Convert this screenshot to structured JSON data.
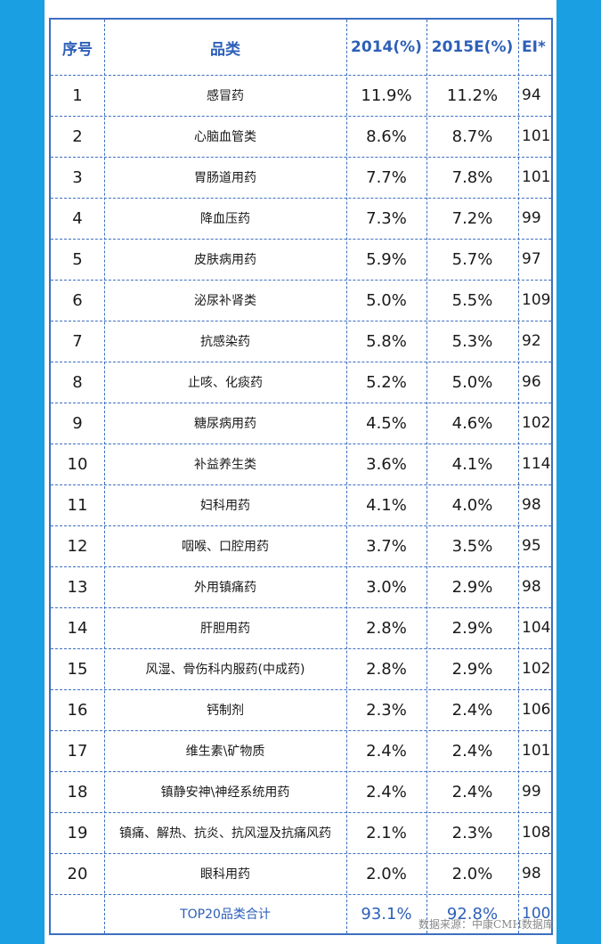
{
  "table": {
    "headers": {
      "index": "序号",
      "category": "品类",
      "y2014": "2014(%)",
      "y2015": "2015E(%)",
      "ei": "EI*"
    },
    "rows": [
      {
        "index": "1",
        "category": "感冒药",
        "y2014": "11.9%",
        "y2015": "11.2%",
        "ei": "94"
      },
      {
        "index": "2",
        "category": "心脑血管类",
        "y2014": "8.6%",
        "y2015": "8.7%",
        "ei": "101"
      },
      {
        "index": "3",
        "category": "胃肠道用药",
        "y2014": "7.7%",
        "y2015": "7.8%",
        "ei": "101"
      },
      {
        "index": "4",
        "category": "降血压药",
        "y2014": "7.3%",
        "y2015": "7.2%",
        "ei": "99"
      },
      {
        "index": "5",
        "category": "皮肤病用药",
        "y2014": "5.9%",
        "y2015": "5.7%",
        "ei": "97"
      },
      {
        "index": "6",
        "category": "泌尿补肾类",
        "y2014": "5.0%",
        "y2015": "5.5%",
        "ei": "109"
      },
      {
        "index": "7",
        "category": "抗感染药",
        "y2014": "5.8%",
        "y2015": "5.3%",
        "ei": "92"
      },
      {
        "index": "8",
        "category": "止咳、化痰药",
        "y2014": "5.2%",
        "y2015": "5.0%",
        "ei": "96"
      },
      {
        "index": "9",
        "category": "糖尿病用药",
        "y2014": "4.5%",
        "y2015": "4.6%",
        "ei": "102"
      },
      {
        "index": "10",
        "category": "补益养生类",
        "y2014": "3.6%",
        "y2015": "4.1%",
        "ei": "114"
      },
      {
        "index": "11",
        "category": "妇科用药",
        "y2014": "4.1%",
        "y2015": "4.0%",
        "ei": "98"
      },
      {
        "index": "12",
        "category": "咽喉、口腔用药",
        "y2014": "3.7%",
        "y2015": "3.5%",
        "ei": "95"
      },
      {
        "index": "13",
        "category": "外用镇痛药",
        "y2014": "3.0%",
        "y2015": "2.9%",
        "ei": "98"
      },
      {
        "index": "14",
        "category": "肝胆用药",
        "y2014": "2.8%",
        "y2015": "2.9%",
        "ei": "104"
      },
      {
        "index": "15",
        "category": "风湿、骨伤科内服药(中成药)",
        "y2014": "2.8%",
        "y2015": "2.9%",
        "ei": "102"
      },
      {
        "index": "16",
        "category": "钙制剂",
        "y2014": "2.3%",
        "y2015": "2.4%",
        "ei": "106"
      },
      {
        "index": "17",
        "category": "维生素\\矿物质",
        "y2014": "2.4%",
        "y2015": "2.4%",
        "ei": "101"
      },
      {
        "index": "18",
        "category": "镇静安神\\神经系统用药",
        "y2014": "2.4%",
        "y2015": "2.4%",
        "ei": "99"
      },
      {
        "index": "19",
        "category": "镇痛、解热、抗炎、抗风湿及抗痛风药",
        "y2014": "2.1%",
        "y2015": "2.3%",
        "ei": "108"
      },
      {
        "index": "20",
        "category": "眼科用药",
        "y2014": "2.0%",
        "y2015": "2.0%",
        "ei": "98"
      }
    ],
    "total": {
      "index": "",
      "category": "TOP20品类合计",
      "y2014": "93.1%",
      "y2015": "92.8%",
      "ei": "100"
    }
  },
  "source_note": "数据来源：中康CMH数据库",
  "colors": {
    "background": "#1a9fe3",
    "border": "#3d6fc0",
    "header_text": "#2d5fb8"
  }
}
